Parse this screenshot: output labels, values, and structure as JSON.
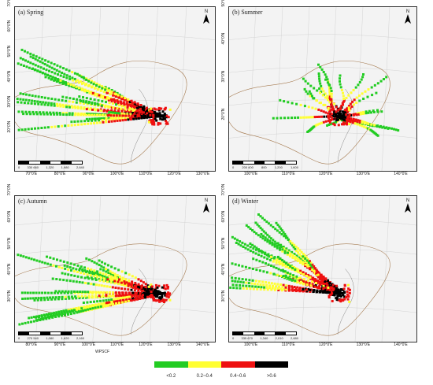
{
  "panels": [
    {
      "title": "(a) Spring",
      "scale_ticks": [
        "0",
        "330 660",
        "1,320",
        "1,980",
        "2,640"
      ],
      "lon_ticks": [
        "70°0'E",
        "80°0'E",
        "90°0'E",
        "100°0'E",
        "110°0'E",
        "120°0'E",
        "130°0'E"
      ],
      "lat_ticks": [
        "70°0'N",
        "60°0'N",
        "50°0'N",
        "40°0'N",
        "30°0'N",
        "20°0'N"
      ],
      "origin": [
        118,
        38
      ],
      "spread": "west"
    },
    {
      "title": "(b) Summer",
      "scale_ticks": [
        "0",
        "200 400",
        "800",
        "1,200",
        "1,600"
      ],
      "lon_ticks": [
        "100°0'E",
        "110°0'E",
        "120°0'E",
        "130°0'E",
        "140°0'E"
      ],
      "lat_ticks": [
        "50°0'N",
        "40°0'N",
        "30°0'N",
        "20°0'N"
      ],
      "origin": [
        118,
        38
      ],
      "spread": "summer"
    },
    {
      "title": "(c) Autumn",
      "scale_ticks": [
        "0",
        "270 540",
        "1,080",
        "1,620",
        "2,160"
      ],
      "lon_ticks": [
        "80°0'E",
        "90°0'E",
        "100°0'E",
        "110°0'E",
        "120°0'E",
        "130°0'E",
        "140°0'E"
      ],
      "lat_ticks": [
        "70°0'N",
        "60°0'N",
        "50°0'N",
        "40°0'N",
        "30°0'N"
      ],
      "origin": [
        116,
        36
      ],
      "spread": "west"
    },
    {
      "title": "(d) Winter",
      "scale_ticks": [
        "0",
        "335 670",
        "1,340",
        "2,010",
        "2,680"
      ],
      "lon_ticks": [
        "100°0'E",
        "110°0'E",
        "120°0'E",
        "130°0'E",
        "140°0'E"
      ],
      "lat_ticks": [
        "70°0'N",
        "60°0'N",
        "50°0'N",
        "40°0'N",
        "30°0'N"
      ],
      "origin": [
        118,
        36
      ],
      "spread": "northwest"
    }
  ],
  "north_label": "N",
  "legend": {
    "title": "WPSCF",
    "items": [
      {
        "label": "<0.2",
        "color": "#22cc22"
      },
      {
        "label": "0.2~0.4",
        "color": "#ffff33"
      },
      {
        "label": "0.4~0.6",
        "color": "#ee1111"
      },
      {
        "label": ">0.6",
        "color": "#000000"
      }
    ]
  }
}
